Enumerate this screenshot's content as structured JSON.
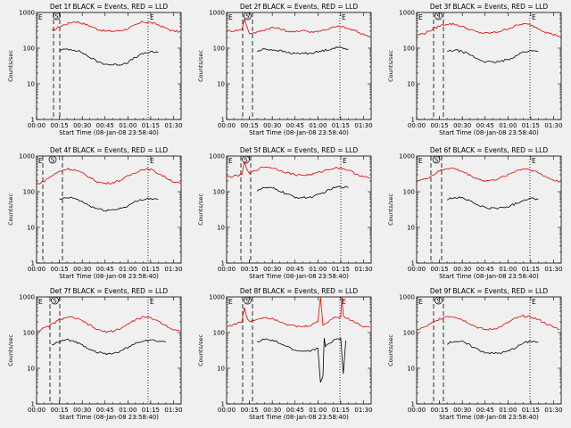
{
  "chart_data": [
    {
      "type": "line",
      "title": "Det 1f BLACK = Events, RED = LLD",
      "xlabel": "Start Time (08-Jan-08 23:58:40)",
      "ylabel": "Counts/sec",
      "yscale": "log",
      "ylim": [
        1,
        1000
      ],
      "xlim": [
        0,
        5700
      ],
      "xticks": [
        "00:00",
        "00:15",
        "00:30",
        "00:45",
        "01:00",
        "01:15",
        "01:30"
      ],
      "yticks": [
        "1",
        "10",
        "100",
        "1000"
      ],
      "markers": [
        "E",
        "S",
        "E"
      ],
      "series": [
        {
          "name": "LLD",
          "color": "#e00000",
          "x": [
            600,
            900,
            1200,
            1500,
            1800,
            2100,
            2400,
            2700,
            3000,
            3300,
            3600,
            3900,
            4200,
            4500,
            4800,
            5100,
            5400,
            5650
          ],
          "values": [
            300,
            400,
            480,
            560,
            500,
            420,
            340,
            300,
            300,
            310,
            350,
            440,
            550,
            520,
            450,
            360,
            300,
            290
          ]
        },
        {
          "name": "Events",
          "color": "#000000",
          "x": [
            900,
            1200,
            1500,
            1800,
            2100,
            2400,
            2700,
            3000,
            3300,
            3600,
            3900,
            4200,
            4500,
            4800
          ],
          "values": [
            85,
            95,
            90,
            75,
            55,
            42,
            36,
            34,
            35,
            40,
            55,
            70,
            78,
            75
          ]
        }
      ]
    },
    {
      "type": "line",
      "title": "Det 2f BLACK = Events, RED = LLD",
      "xlabel": "Start Time (08-Jan-08 23:58:40)",
      "ylabel": "Counts/sec",
      "yscale": "log",
      "ylim": [
        1,
        1000
      ],
      "xlim": [
        0,
        5700
      ],
      "xticks": [
        "00:00",
        "00:15",
        "00:30",
        "00:45",
        "01:00",
        "01:15",
        "01:30"
      ],
      "yticks": [
        "1",
        "10",
        "100",
        "1000"
      ],
      "markers": [
        "E",
        "S",
        "E"
      ],
      "series": [
        {
          "name": "LLD",
          "color": "#e00000",
          "x": [
            0,
            300,
            600,
            700,
            800,
            900,
            1200,
            1500,
            1800,
            2100,
            2400,
            2700,
            3000,
            3300,
            3600,
            3900,
            4200,
            4500,
            4800,
            5100,
            5400,
            5650
          ],
          "values": [
            300,
            310,
            330,
            650,
            400,
            260,
            280,
            330,
            380,
            350,
            300,
            280,
            330,
            280,
            300,
            330,
            380,
            410,
            350,
            300,
            240,
            220
          ]
        },
        {
          "name": "Events",
          "color": "#000000",
          "x": [
            1200,
            1500,
            1800,
            2100,
            2400,
            2700,
            3000,
            3300,
            3600,
            3900,
            4200,
            4500,
            4800
          ],
          "values": [
            80,
            95,
            90,
            85,
            75,
            70,
            72,
            72,
            78,
            88,
            100,
            105,
            95
          ]
        }
      ]
    },
    {
      "type": "line",
      "title": "Det 3f BLACK = Events, RED = LLD",
      "xlabel": "Start Time (08-Jan-08 23:58:40)",
      "ylabel": "Counts/sec",
      "yscale": "log",
      "ylim": [
        1,
        1000
      ],
      "xlim": [
        0,
        5700
      ],
      "xticks": [
        "00:00",
        "00:15",
        "00:30",
        "00:45",
        "01:00",
        "01:15",
        "01:30"
      ],
      "yticks": [
        "1",
        "10",
        "100",
        "1000"
      ],
      "markers": [
        "E",
        "S",
        "E"
      ],
      "series": [
        {
          "name": "LLD",
          "color": "#e00000",
          "x": [
            0,
            300,
            600,
            900,
            1200,
            1500,
            1800,
            2100,
            2400,
            2700,
            3000,
            3300,
            3600,
            3900,
            4200,
            4500,
            4800,
            5100,
            5400,
            5650
          ],
          "values": [
            230,
            260,
            330,
            420,
            480,
            470,
            400,
            330,
            280,
            260,
            270,
            300,
            350,
            420,
            480,
            450,
            360,
            280,
            240,
            220
          ]
        },
        {
          "name": "Events",
          "color": "#000000",
          "x": [
            1200,
            1500,
            1800,
            2100,
            2400,
            2700,
            3000,
            3300,
            3600,
            3900,
            4200,
            4500,
            4800
          ],
          "values": [
            80,
            88,
            80,
            65,
            50,
            42,
            40,
            42,
            48,
            60,
            78,
            85,
            80
          ]
        }
      ]
    },
    {
      "type": "line",
      "title": "Det 4f BLACK = Events, RED = LLD",
      "xlabel": "Start Time (08-Jan-08 23:58:40)",
      "ylabel": "Counts/sec",
      "yscale": "log",
      "ylim": [
        1,
        1000
      ],
      "xlim": [
        0,
        5700
      ],
      "xticks": [
        "00:00",
        "00:15",
        "00:30",
        "00:45",
        "01:00",
        "01:15",
        "01:30"
      ],
      "yticks": [
        "1",
        "10",
        "100",
        "1000"
      ],
      "markers": [
        "E",
        "S",
        "E"
      ],
      "series": [
        {
          "name": "LLD",
          "color": "#e00000",
          "x": [
            0,
            300,
            600,
            900,
            1200,
            1500,
            1800,
            2100,
            2400,
            2700,
            3000,
            3300,
            3600,
            3900,
            4200,
            4500,
            4800,
            5100,
            5400,
            5650
          ],
          "values": [
            160,
            200,
            280,
            370,
            440,
            410,
            330,
            250,
            190,
            170,
            180,
            210,
            270,
            350,
            430,
            420,
            330,
            250,
            190,
            170
          ]
        },
        {
          "name": "Events",
          "color": "#000000",
          "x": [
            900,
            1200,
            1500,
            1800,
            2100,
            2400,
            2700,
            3000,
            3300,
            3600,
            3900,
            4200,
            4500,
            4800
          ],
          "values": [
            60,
            68,
            65,
            52,
            40,
            33,
            30,
            31,
            34,
            40,
            52,
            62,
            65,
            60
          ]
        }
      ]
    },
    {
      "type": "line",
      "title": "Det 5f BLACK = Events, RED = LLD",
      "xlabel": "Start Time (08-Jan-08 23:58:40)",
      "ylabel": "Counts/sec",
      "yscale": "log",
      "ylim": [
        1,
        1000
      ],
      "xlim": [
        0,
        5700
      ],
      "xticks": [
        "00:00",
        "00:15",
        "00:30",
        "00:45",
        "01:00",
        "01:15",
        "01:30"
      ],
      "yticks": [
        "1",
        "10",
        "100",
        "1000"
      ],
      "markers": [
        "E",
        "S",
        "E"
      ],
      "series": [
        {
          "name": "LLD",
          "color": "#e00000",
          "x": [
            0,
            300,
            600,
            700,
            800,
            900,
            1200,
            1500,
            1800,
            2100,
            2400,
            2700,
            3000,
            3300,
            3600,
            3900,
            4200,
            4500,
            4800,
            5100,
            5400,
            5650
          ],
          "values": [
            260,
            270,
            300,
            700,
            420,
            320,
            420,
            500,
            470,
            400,
            340,
            300,
            290,
            300,
            340,
            400,
            460,
            470,
            400,
            320,
            260,
            240
          ]
        },
        {
          "name": "Events",
          "color": "#000000",
          "x": [
            1200,
            1500,
            1800,
            2100,
            2400,
            2700,
            3000,
            3300,
            3600,
            3900,
            4200,
            4500,
            4800
          ],
          "values": [
            110,
            130,
            125,
            105,
            85,
            70,
            68,
            70,
            80,
            100,
            125,
            140,
            130
          ]
        }
      ]
    },
    {
      "type": "line",
      "title": "Det 6f BLACK = Events, RED = LLD",
      "xlabel": "Start Time (08-Jan-08 23:58:40)",
      "ylabel": "Counts/sec",
      "yscale": "log",
      "ylim": [
        1,
        1000
      ],
      "xlim": [
        0,
        5700
      ],
      "xticks": [
        "00:00",
        "00:15",
        "00:30",
        "00:45",
        "01:00",
        "01:15",
        "01:30"
      ],
      "yticks": [
        "1",
        "10",
        "100",
        "1000"
      ],
      "markers": [
        "E",
        "S",
        "E"
      ],
      "series": [
        {
          "name": "LLD",
          "color": "#e00000",
          "x": [
            0,
            300,
            600,
            900,
            1200,
            1500,
            1800,
            2100,
            2400,
            2700,
            3000,
            3300,
            3600,
            3900,
            4200,
            4500,
            4800,
            5100,
            5400,
            5650
          ],
          "values": [
            200,
            220,
            280,
            380,
            460,
            440,
            370,
            290,
            230,
            200,
            210,
            240,
            300,
            380,
            440,
            420,
            340,
            260,
            210,
            190
          ]
        },
        {
          "name": "Events",
          "color": "#000000",
          "x": [
            1200,
            1500,
            1800,
            2100,
            2400,
            2700,
            3000,
            3300,
            3600,
            3900,
            4200,
            4500,
            4800
          ],
          "values": [
            60,
            70,
            68,
            55,
            42,
            36,
            34,
            35,
            38,
            46,
            58,
            66,
            62
          ]
        }
      ]
    },
    {
      "type": "line",
      "title": "Det 7f BLACK = Events, RED = LLD",
      "xlabel": "Start Time (08-Jan-08 23:58:40)",
      "ylabel": "Counts/sec",
      "yscale": "log",
      "ylim": [
        1,
        1000
      ],
      "xlim": [
        0,
        5700
      ],
      "xticks": [
        "00:00",
        "00:15",
        "00:30",
        "00:45",
        "01:00",
        "01:15",
        "01:30"
      ],
      "yticks": [
        "1",
        "10",
        "100",
        "1000"
      ],
      "markers": [
        "E",
        "S",
        "E"
      ],
      "series": [
        {
          "name": "LLD",
          "color": "#e00000",
          "x": [
            0,
            300,
            600,
            900,
            1200,
            1500,
            1800,
            2100,
            2400,
            2700,
            3000,
            3300,
            3600,
            3900,
            4200,
            4500,
            4800,
            5100,
            5400,
            5650
          ],
          "values": [
            110,
            130,
            170,
            230,
            270,
            260,
            210,
            160,
            120,
            105,
            110,
            130,
            170,
            230,
            270,
            260,
            210,
            160,
            120,
            110
          ]
        },
        {
          "name": "Events",
          "color": "#000000",
          "x": [
            600,
            900,
            1200,
            1500,
            1800,
            2100,
            2400,
            2700,
            3000,
            3300,
            3600,
            3900,
            4200,
            4500,
            4800,
            5100
          ],
          "values": [
            45,
            55,
            62,
            58,
            45,
            35,
            28,
            25,
            26,
            30,
            38,
            50,
            60,
            62,
            58,
            55
          ]
        }
      ]
    },
    {
      "type": "line",
      "title": "Det 8f BLACK = Events, RED = LLD",
      "xlabel": "Start Time (08-Jan-08 23:58:40)",
      "ylabel": "Counts/sec",
      "yscale": "log",
      "ylim": [
        1,
        1000
      ],
      "xlim": [
        0,
        5700
      ],
      "xticks": [
        "00:00",
        "00:15",
        "00:30",
        "00:45",
        "01:00",
        "01:15",
        "01:30"
      ],
      "yticks": [
        "1",
        "10",
        "100",
        "1000"
      ],
      "markers": [
        "E",
        "S",
        "E"
      ],
      "series": [
        {
          "name": "LLD",
          "color": "#e00000",
          "x": [
            0,
            300,
            600,
            700,
            800,
            900,
            1200,
            1500,
            1800,
            2100,
            2400,
            2700,
            3000,
            3300,
            3600,
            3700,
            3800,
            3900,
            4200,
            4500,
            4550,
            4600,
            4800,
            5100,
            5400,
            5650
          ],
          "values": [
            150,
            170,
            200,
            500,
            260,
            200,
            240,
            270,
            250,
            210,
            170,
            150,
            145,
            160,
            200,
            1000,
            160,
            180,
            260,
            280,
            1000,
            300,
            240,
            190,
            150,
            140
          ]
        },
        {
          "name": "Events",
          "color": "#000000",
          "x": [
            1200,
            1500,
            1800,
            2100,
            2400,
            2700,
            3000,
            3300,
            3600,
            3700,
            3800,
            3850,
            3900,
            4200,
            4500,
            4600,
            4700
          ],
          "values": [
            55,
            65,
            60,
            50,
            40,
            32,
            30,
            31,
            36,
            4,
            6,
            70,
            40,
            60,
            70,
            7,
            60
          ]
        }
      ]
    },
    {
      "type": "line",
      "title": "Det 9f BLACK = Events, RED = LLD",
      "xlabel": "Start Time (08-Jan-08 23:58:40)",
      "ylabel": "Counts/sec",
      "yscale": "log",
      "ylim": [
        1,
        1000
      ],
      "xlim": [
        0,
        5700
      ],
      "xticks": [
        "00:00",
        "00:15",
        "00:30",
        "00:45",
        "01:00",
        "01:15",
        "01:30"
      ],
      "yticks": [
        "1",
        "10",
        "100",
        "1000"
      ],
      "markers": [
        "E",
        "S",
        "E"
      ],
      "series": [
        {
          "name": "LLD",
          "color": "#e00000",
          "x": [
            0,
            300,
            600,
            900,
            1200,
            1500,
            1800,
            2100,
            2400,
            2700,
            3000,
            3300,
            3600,
            3900,
            4200,
            4500,
            4800,
            5100,
            5400,
            5650
          ],
          "values": [
            120,
            140,
            180,
            240,
            290,
            280,
            230,
            180,
            140,
            120,
            125,
            145,
            190,
            250,
            290,
            280,
            230,
            180,
            140,
            125
          ]
        },
        {
          "name": "Events",
          "color": "#000000",
          "x": [
            1200,
            1500,
            1800,
            2100,
            2400,
            2700,
            3000,
            3300,
            3600,
            3900,
            4200,
            4500,
            4800
          ],
          "values": [
            50,
            58,
            55,
            44,
            34,
            28,
            26,
            27,
            30,
            38,
            50,
            58,
            54
          ]
        }
      ]
    }
  ]
}
